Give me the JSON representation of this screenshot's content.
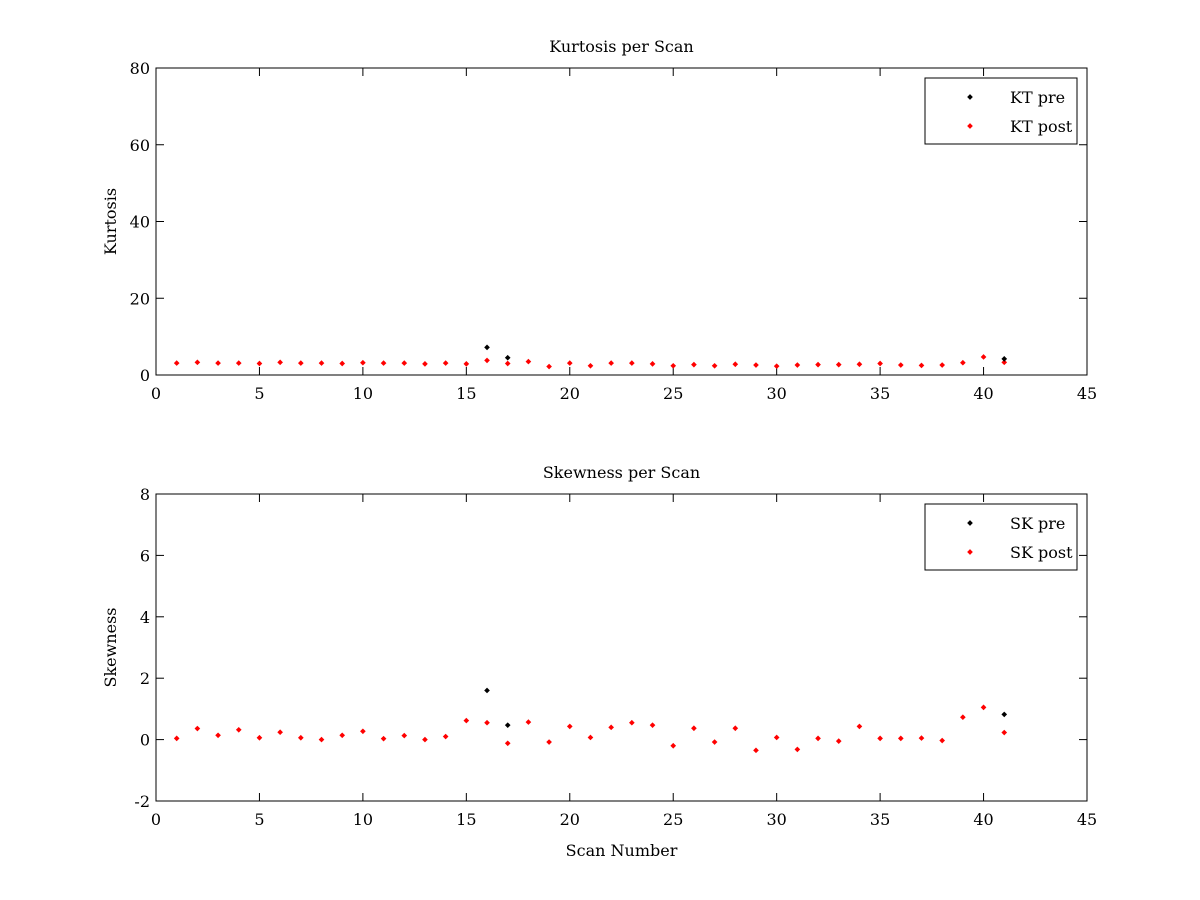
{
  "chart_data": [
    {
      "type": "scatter",
      "title": "Kurtosis per Scan",
      "xlabel": "",
      "ylabel": "Kurtosis",
      "xlim": [
        0,
        45
      ],
      "ylim": [
        0,
        80
      ],
      "xticks": [
        0,
        5,
        10,
        15,
        20,
        25,
        30,
        35,
        40,
        45
      ],
      "yticks": [
        0,
        20,
        40,
        60,
        80
      ],
      "legend_position": "top-right",
      "series": [
        {
          "name": "KT pre",
          "color": "#000000",
          "x": [
            16,
            17,
            41
          ],
          "y": [
            7.2,
            4.5,
            4.2
          ]
        },
        {
          "name": "KT post",
          "color": "#ff0000",
          "x": [
            1,
            2,
            3,
            4,
            5,
            6,
            7,
            8,
            9,
            10,
            11,
            12,
            13,
            14,
            15,
            16,
            17,
            18,
            19,
            20,
            21,
            22,
            23,
            24,
            25,
            26,
            27,
            28,
            29,
            30,
            31,
            32,
            33,
            34,
            35,
            36,
            37,
            38,
            39,
            40,
            41
          ],
          "y": [
            3.1,
            3.3,
            3.1,
            3.1,
            3.0,
            3.3,
            3.1,
            3.1,
            3.0,
            3.2,
            3.1,
            3.1,
            2.9,
            3.1,
            2.9,
            3.8,
            3.0,
            3.5,
            2.2,
            3.1,
            2.4,
            3.1,
            3.1,
            2.9,
            2.4,
            2.7,
            2.4,
            2.8,
            2.6,
            2.3,
            2.6,
            2.7,
            2.7,
            2.8,
            3.0,
            2.6,
            2.5,
            2.6,
            3.2,
            4.7,
            3.3
          ]
        }
      ]
    },
    {
      "type": "scatter",
      "title": "Skewness per Scan",
      "xlabel": "Scan Number",
      "ylabel": "Skewness",
      "xlim": [
        0,
        45
      ],
      "ylim": [
        -2,
        8
      ],
      "xticks": [
        0,
        5,
        10,
        15,
        20,
        25,
        30,
        35,
        40,
        45
      ],
      "yticks": [
        -2,
        0,
        2,
        4,
        6,
        8
      ],
      "legend_position": "top-right",
      "series": [
        {
          "name": "SK pre",
          "color": "#000000",
          "x": [
            16,
            17,
            41
          ],
          "y": [
            1.6,
            0.47,
            0.82
          ]
        },
        {
          "name": "SK post",
          "color": "#ff0000",
          "x": [
            1,
            2,
            3,
            4,
            5,
            6,
            7,
            8,
            9,
            10,
            11,
            12,
            13,
            14,
            15,
            16,
            17,
            18,
            19,
            20,
            21,
            22,
            23,
            24,
            25,
            26,
            27,
            28,
            29,
            30,
            31,
            32,
            33,
            34,
            35,
            36,
            37,
            38,
            39,
            40,
            41
          ],
          "y": [
            0.04,
            0.36,
            0.14,
            0.32,
            0.06,
            0.24,
            0.06,
            0.0,
            0.14,
            0.27,
            0.03,
            0.13,
            0.0,
            0.1,
            0.62,
            0.55,
            -0.12,
            0.57,
            -0.08,
            0.43,
            0.07,
            0.4,
            0.55,
            0.47,
            -0.2,
            0.37,
            -0.08,
            0.37,
            -0.35,
            0.07,
            -0.32,
            0.04,
            -0.05,
            0.43,
            0.04,
            0.04,
            0.05,
            -0.03,
            0.73,
            1.05,
            0.23
          ]
        }
      ]
    }
  ]
}
